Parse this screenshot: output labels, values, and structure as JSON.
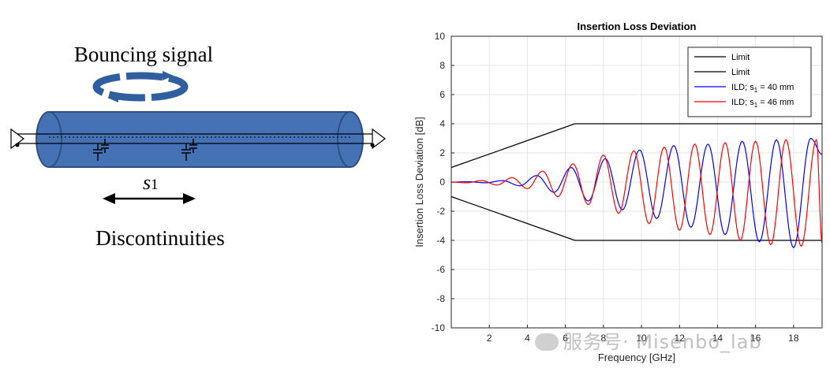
{
  "diagram": {
    "title": "Bouncing signal",
    "spacing_label": "s",
    "spacing_subscript": "1",
    "caption": "Discontinuities"
  },
  "chart_data": {
    "type": "line",
    "title": "Insertion Loss Deviation",
    "xlabel": "Frequency [GHz]",
    "ylabel": "Insertion Loss Deviation [dB]",
    "xlim": [
      0,
      19.5
    ],
    "ylim": [
      -10,
      10
    ],
    "xticks": [
      2,
      4,
      6,
      8,
      10,
      12,
      14,
      16,
      18
    ],
    "yticks": [
      -10,
      -8,
      -6,
      -4,
      -2,
      0,
      2,
      4,
      6,
      8,
      10
    ],
    "grid": true,
    "legend_position": "top-right",
    "series": [
      {
        "name": "Limit",
        "color": "#000000",
        "x": [
          0,
          6.5,
          19.5
        ],
        "y": [
          1,
          4,
          4
        ]
      },
      {
        "name": "Limit",
        "color": "#000000",
        "x": [
          0,
          6.5,
          19.5
        ],
        "y": [
          -1,
          -4,
          -4
        ]
      },
      {
        "name": "ILD; s1 = 40 mm",
        "legend_main": "ILD; s",
        "legend_sub": "1",
        "legend_rest": " = 40 mm",
        "color": "#0000ff",
        "x": [
          0,
          0.9,
          1.8,
          2.7,
          3.6,
          4.5,
          5.4,
          6.3,
          7.2,
          8.1,
          9.0,
          9.9,
          10.8,
          11.7,
          12.6,
          13.5,
          14.4,
          15.3,
          16.2,
          17.1,
          18.0,
          18.9,
          19.5
        ],
        "y": [
          0,
          0.02,
          -0.05,
          0.1,
          -0.25,
          0.45,
          -0.7,
          1.0,
          -1.3,
          1.6,
          -1.9,
          2.2,
          -2.5,
          2.5,
          -3.1,
          2.6,
          -3.6,
          2.8,
          -4.1,
          2.9,
          -4.5,
          3.0,
          1.9
        ]
      },
      {
        "name": "ILD; s1 = 46 mm",
        "legend_main": "ILD; s",
        "legend_sub": "1",
        "legend_rest": " = 46 mm",
        "color": "#ff0000",
        "x": [
          0,
          0.8,
          1.6,
          2.4,
          3.2,
          4.0,
          4.8,
          5.6,
          6.4,
          7.2,
          8.0,
          8.8,
          9.6,
          10.4,
          11.2,
          12.0,
          12.8,
          13.6,
          14.4,
          15.2,
          16.0,
          16.8,
          17.6,
          18.4,
          19.2,
          19.5
        ],
        "y": [
          0,
          -0.05,
          0.1,
          -0.2,
          0.3,
          -0.45,
          0.75,
          -1.0,
          1.25,
          -1.55,
          1.85,
          -2.15,
          2.15,
          -2.85,
          2.4,
          -3.3,
          2.6,
          -3.6,
          2.7,
          -4.0,
          2.8,
          -4.3,
          2.9,
          -4.4,
          2.9,
          -4.2
        ]
      }
    ]
  },
  "watermark": {
    "text": "服务号· Misenbo_lab"
  }
}
